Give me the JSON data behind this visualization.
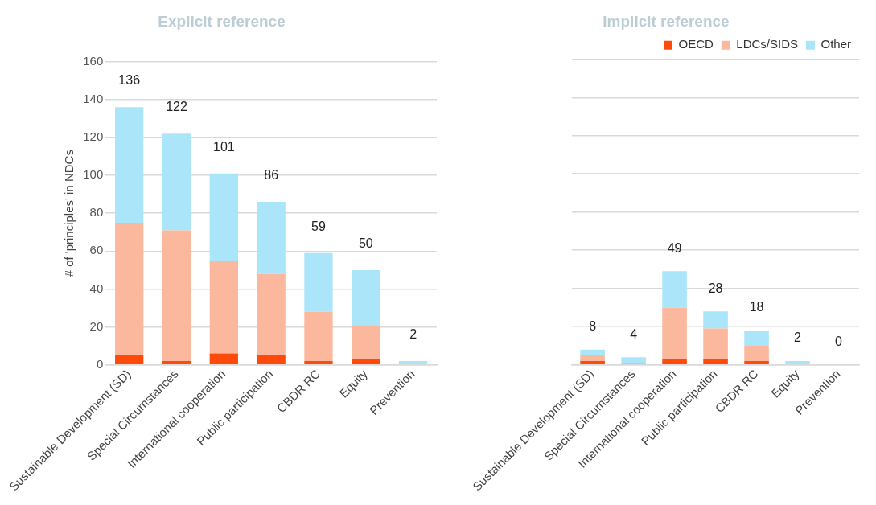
{
  "chart_data": [
    {
      "type": "bar",
      "title": "Explicit reference",
      "ylabel": "# of 'principles' in NDCs",
      "stacked": true,
      "categories": [
        "Sustainable Development (SD)",
        "Special Circumstances",
        "International cooperation",
        "Public participation",
        "CBDR RC",
        "Equity",
        "Prevention"
      ],
      "series": [
        {
          "color": "#fe4a0b",
          "values": [
            5,
            2,
            6,
            5,
            2,
            3,
            0
          ]
        },
        {
          "color": "#fbb89c",
          "values": [
            70,
            69,
            49,
            43,
            26,
            18,
            0
          ]
        },
        {
          "color": "#aae5fa",
          "values": [
            61,
            51,
            46,
            38,
            31,
            29,
            2
          ]
        }
      ],
      "totals": [
        "136",
        "122",
        "101",
        "86",
        "59",
        "50",
        "2"
      ],
      "ylim": [
        0,
        160
      ],
      "yticks": [
        0,
        20,
        40,
        60,
        80,
        100,
        120,
        140,
        160
      ],
      "grid": "y",
      "legend": false
    },
    {
      "type": "bar",
      "title": "Implicit reference",
      "stacked": true,
      "categories": [
        "Sustainable Development (SD)",
        "Special Circumstances",
        "International cooperation",
        "Public participation",
        "CBDR RC",
        "Equity",
        "Prevention"
      ],
      "series": [
        {
          "name": "OECD",
          "color": "#fe4a0b",
          "values": [
            2,
            0,
            3,
            3,
            2,
            0,
            0
          ]
        },
        {
          "name": "LDCs/SIDS",
          "color": "#fbb89c",
          "values": [
            3,
            1,
            27,
            16,
            8,
            0,
            0
          ]
        },
        {
          "name": "Other",
          "color": "#aae5fa",
          "values": [
            3,
            3,
            19,
            9,
            8,
            2,
            0
          ]
        }
      ],
      "totals": [
        "8",
        "4",
        "49",
        "28",
        "18",
        "2",
        "0"
      ],
      "ylim": [
        0,
        160
      ],
      "yticks": [
        0,
        20,
        40,
        60,
        80,
        100,
        120,
        140,
        160
      ],
      "grid": "y",
      "legend": "top right",
      "tick_labels": "x"
    }
  ]
}
